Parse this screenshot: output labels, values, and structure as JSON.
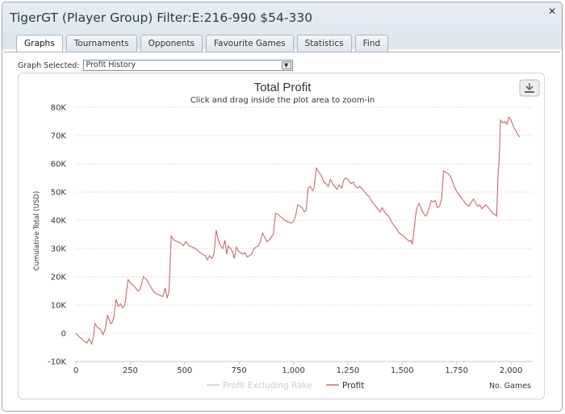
{
  "window": {
    "title": "TigerGT (Player Group) Filter:E:216-990 $54-330",
    "close_glyph": "✕"
  },
  "tabs": [
    {
      "label": "Graphs",
      "active": true
    },
    {
      "label": "Tournaments",
      "active": false
    },
    {
      "label": "Opponents",
      "active": false
    },
    {
      "label": "Favourite Games",
      "active": false
    },
    {
      "label": "Statistics",
      "active": false
    },
    {
      "label": "Find",
      "active": false
    }
  ],
  "graph_selector": {
    "label": "Graph Selected:",
    "value": "Profit History"
  },
  "chart_data": {
    "type": "line",
    "title": "Total Profit",
    "subtitle": "Click and drag inside the plot area to zoom-in",
    "xlabel": "No. Games",
    "ylabel": "Cumulative Total (USD)",
    "xlim": [
      0,
      2100
    ],
    "ylim": [
      -10000,
      80000
    ],
    "x_ticks": [
      "0",
      "250",
      "500",
      "750",
      "1,000",
      "1,250",
      "1,500",
      "1,750",
      "2,000"
    ],
    "x_tick_values": [
      0,
      250,
      500,
      750,
      1000,
      1250,
      1500,
      1750,
      2000
    ],
    "y_ticks": [
      "-10K",
      "0",
      "10K",
      "20K",
      "30K",
      "40K",
      "50K",
      "60K",
      "70K",
      "80K"
    ],
    "y_tick_values": [
      -10000,
      0,
      10000,
      20000,
      30000,
      40000,
      50000,
      60000,
      70000,
      80000
    ],
    "grid": true,
    "legend_position": "bottom",
    "colors": {
      "profit": "#c46b6b",
      "profit_excl_rake": "#cccccc"
    },
    "series": [
      {
        "name": "Profit Excluding Rake",
        "visible": false,
        "points": []
      },
      {
        "name": "Profit",
        "visible": true,
        "points": [
          [
            0,
            0
          ],
          [
            20,
            -1500
          ],
          [
            35,
            -2500
          ],
          [
            50,
            -3500
          ],
          [
            60,
            -2000
          ],
          [
            72,
            -3800
          ],
          [
            80,
            -1500
          ],
          [
            88,
            3500
          ],
          [
            100,
            2000
          ],
          [
            112,
            1500
          ],
          [
            125,
            -500
          ],
          [
            135,
            1500
          ],
          [
            145,
            6500
          ],
          [
            152,
            5000
          ],
          [
            160,
            3500
          ],
          [
            168,
            4000
          ],
          [
            175,
            6000
          ],
          [
            185,
            12000
          ],
          [
            195,
            9500
          ],
          [
            205,
            10500
          ],
          [
            215,
            9000
          ],
          [
            225,
            10000
          ],
          [
            240,
            19000
          ],
          [
            255,
            17500
          ],
          [
            270,
            16500
          ],
          [
            285,
            15000
          ],
          [
            295,
            15500
          ],
          [
            310,
            20000
          ],
          [
            325,
            19000
          ],
          [
            340,
            17000
          ],
          [
            355,
            15000
          ],
          [
            370,
            14000
          ],
          [
            385,
            13500
          ],
          [
            400,
            13000
          ],
          [
            410,
            16000
          ],
          [
            420,
            12500
          ],
          [
            428,
            15000
          ],
          [
            438,
            34500
          ],
          [
            450,
            33000
          ],
          [
            465,
            32500
          ],
          [
            480,
            32000
          ],
          [
            495,
            31000
          ],
          [
            505,
            32500
          ],
          [
            520,
            31000
          ],
          [
            535,
            30500
          ],
          [
            550,
            30000
          ],
          [
            565,
            29000
          ],
          [
            580,
            28000
          ],
          [
            595,
            27500
          ],
          [
            605,
            26000
          ],
          [
            615,
            27500
          ],
          [
            625,
            26500
          ],
          [
            635,
            28000
          ],
          [
            645,
            36500
          ],
          [
            655,
            33000
          ],
          [
            665,
            31000
          ],
          [
            675,
            30000
          ],
          [
            685,
            33000
          ],
          [
            693,
            28000
          ],
          [
            700,
            31000
          ],
          [
            710,
            30000
          ],
          [
            720,
            29000
          ],
          [
            728,
            26500
          ],
          [
            738,
            30500
          ],
          [
            748,
            29000
          ],
          [
            758,
            28500
          ],
          [
            768,
            28000
          ],
          [
            778,
            28500
          ],
          [
            788,
            27000
          ],
          [
            798,
            27500
          ],
          [
            808,
            28000
          ],
          [
            818,
            30000
          ],
          [
            828,
            30500
          ],
          [
            838,
            31000
          ],
          [
            848,
            32500
          ],
          [
            858,
            35500
          ],
          [
            868,
            34000
          ],
          [
            878,
            32500
          ],
          [
            888,
            33000
          ],
          [
            898,
            34000
          ],
          [
            908,
            35000
          ],
          [
            918,
            42500
          ],
          [
            930,
            42000
          ],
          [
            945,
            41000
          ],
          [
            960,
            40000
          ],
          [
            975,
            39500
          ],
          [
            990,
            39000
          ],
          [
            1000,
            39500
          ],
          [
            1010,
            41500
          ],
          [
            1020,
            45500
          ],
          [
            1030,
            45000
          ],
          [
            1040,
            44500
          ],
          [
            1050,
            43000
          ],
          [
            1058,
            43500
          ],
          [
            1068,
            51500
          ],
          [
            1078,
            52000
          ],
          [
            1088,
            50500
          ],
          [
            1095,
            51500
          ],
          [
            1105,
            58500
          ],
          [
            1118,
            57000
          ],
          [
            1130,
            55500
          ],
          [
            1140,
            53500
          ],
          [
            1150,
            53000
          ],
          [
            1160,
            52000
          ],
          [
            1170,
            54500
          ],
          [
            1180,
            53000
          ],
          [
            1190,
            52000
          ],
          [
            1200,
            51000
          ],
          [
            1210,
            52500
          ],
          [
            1222,
            51500
          ],
          [
            1232,
            54500
          ],
          [
            1242,
            55000
          ],
          [
            1255,
            54000
          ],
          [
            1265,
            53000
          ],
          [
            1275,
            53500
          ],
          [
            1285,
            52000
          ],
          [
            1295,
            51500
          ],
          [
            1305,
            52000
          ],
          [
            1318,
            51000
          ],
          [
            1328,
            50000
          ],
          [
            1338,
            49000
          ],
          [
            1348,
            48500
          ],
          [
            1358,
            47000
          ],
          [
            1368,
            46000
          ],
          [
            1378,
            45000
          ],
          [
            1388,
            44000
          ],
          [
            1398,
            43000
          ],
          [
            1408,
            44500
          ],
          [
            1418,
            43000
          ],
          [
            1428,
            42000
          ],
          [
            1438,
            41500
          ],
          [
            1448,
            40000
          ],
          [
            1458,
            38500
          ],
          [
            1470,
            37500
          ],
          [
            1482,
            36000
          ],
          [
            1494,
            35000
          ],
          [
            1506,
            34500
          ],
          [
            1518,
            33500
          ],
          [
            1526,
            33000
          ],
          [
            1534,
            32500
          ],
          [
            1540,
            33000
          ],
          [
            1546,
            31500
          ],
          [
            1552,
            34500
          ],
          [
            1560,
            41000
          ],
          [
            1568,
            44500
          ],
          [
            1578,
            46000
          ],
          [
            1588,
            44000
          ],
          [
            1598,
            42500
          ],
          [
            1608,
            41500
          ],
          [
            1616,
            42500
          ],
          [
            1626,
            45000
          ],
          [
            1634,
            47000
          ],
          [
            1642,
            46500
          ],
          [
            1652,
            47000
          ],
          [
            1662,
            44500
          ],
          [
            1672,
            45000
          ],
          [
            1682,
            48000
          ],
          [
            1690,
            57500
          ],
          [
            1700,
            57000
          ],
          [
            1712,
            56500
          ],
          [
            1722,
            55500
          ],
          [
            1732,
            53500
          ],
          [
            1742,
            51500
          ],
          [
            1752,
            50000
          ],
          [
            1762,
            49000
          ],
          [
            1772,
            48000
          ],
          [
            1782,
            47000
          ],
          [
            1790,
            46000
          ],
          [
            1798,
            45500
          ],
          [
            1808,
            45000
          ],
          [
            1818,
            46500
          ],
          [
            1828,
            47500
          ],
          [
            1838,
            46000
          ],
          [
            1848,
            45000
          ],
          [
            1858,
            45500
          ],
          [
            1866,
            44000
          ],
          [
            1876,
            45000
          ],
          [
            1886,
            45500
          ],
          [
            1896,
            44500
          ],
          [
            1906,
            43500
          ],
          [
            1916,
            42500
          ],
          [
            1926,
            42000
          ],
          [
            1934,
            41500
          ],
          [
            1940,
            55000
          ],
          [
            1946,
            62000
          ],
          [
            1952,
            75500
          ],
          [
            1962,
            74500
          ],
          [
            1972,
            75000
          ],
          [
            1982,
            74000
          ],
          [
            1990,
            76500
          ],
          [
            2000,
            75500
          ],
          [
            2010,
            73500
          ],
          [
            2020,
            72000
          ],
          [
            2030,
            70500
          ],
          [
            2040,
            69500
          ]
        ]
      }
    ]
  }
}
